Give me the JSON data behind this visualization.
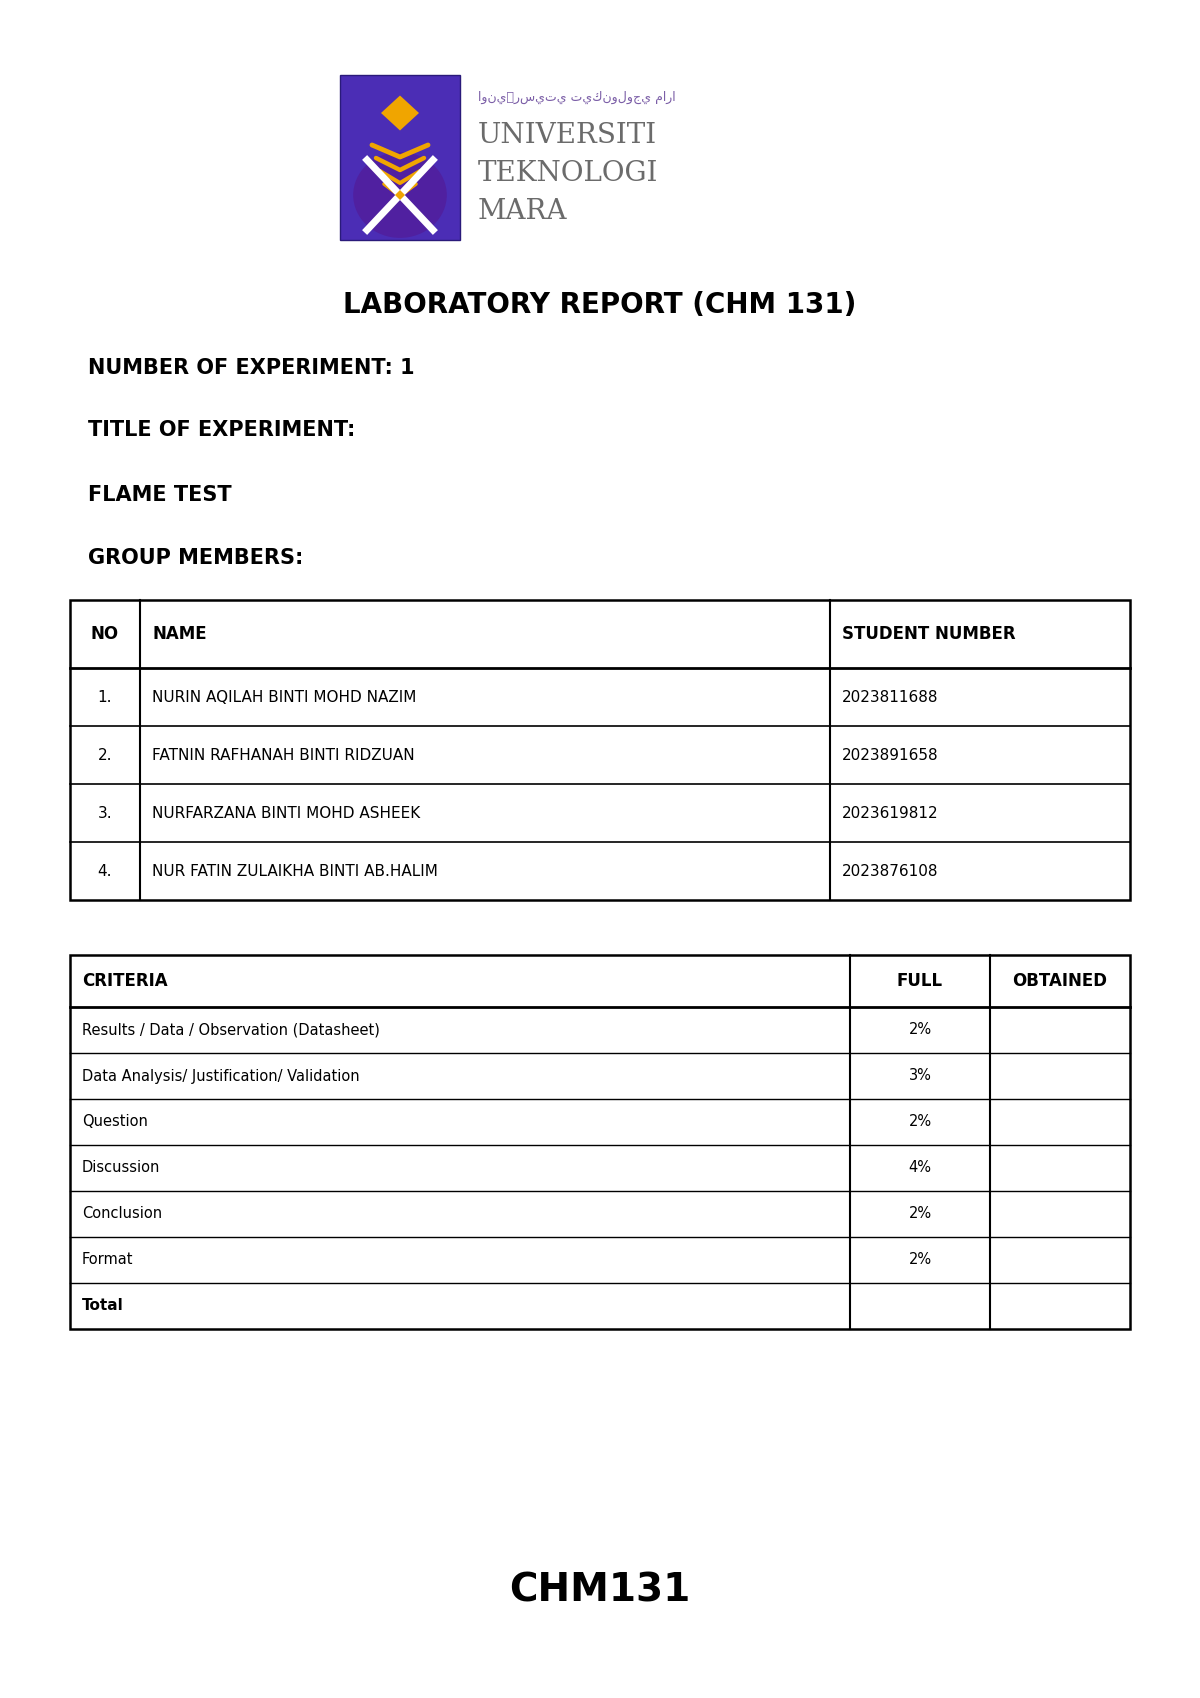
{
  "title": "LABORATORY REPORT (CHM 131)",
  "number_of_experiment": "NUMBER OF EXPERIMENT: 1",
  "title_of_experiment": "TITLE OF EXPERIMENT:",
  "experiment_name": "FLAME TEST",
  "group_members_label": "GROUP MEMBERS:",
  "footer": "CHM131",
  "members_headers": [
    "NO",
    "NAME",
    "STUDENT NUMBER"
  ],
  "members_data": [
    [
      "1.",
      "NURIN AQILAH BINTI MOHD NAZIM",
      "2023811688"
    ],
    [
      "2.",
      "FATNIN RAFHANAH BINTI RIDZUAN",
      "2023891658"
    ],
    [
      "3.",
      "NURFARZANA BINTI MOHD ASHEEK",
      "2023619812"
    ],
    [
      "4.",
      "NUR FATIN ZULAIKHA BINTI AB.HALIM",
      "2023876108"
    ]
  ],
  "criteria_headers": [
    "CRITERIA",
    "FULL",
    "OBTAINED"
  ],
  "criteria_data": [
    [
      "Results / Data / Observation (Datasheet)",
      "2%",
      ""
    ],
    [
      "Data Analysis/ Justification/ Validation",
      "3%",
      ""
    ],
    [
      "Question",
      "2%",
      ""
    ],
    [
      "Discussion",
      "4%",
      ""
    ],
    [
      "Conclusion",
      "2%",
      ""
    ],
    [
      "Format",
      "2%",
      ""
    ],
    [
      "Total",
      "",
      ""
    ]
  ],
  "background_color": "#ffffff",
  "text_color": "#000000",
  "logo_purple": "#4B2DB5",
  "logo_dark_purple": "#3B1F9A",
  "logo_gold": "#F0A500",
  "logo_white": "#ffffff",
  "uitm_name_color": "#6B6B6B",
  "uitm_arabic_color": "#7B5EA7"
}
